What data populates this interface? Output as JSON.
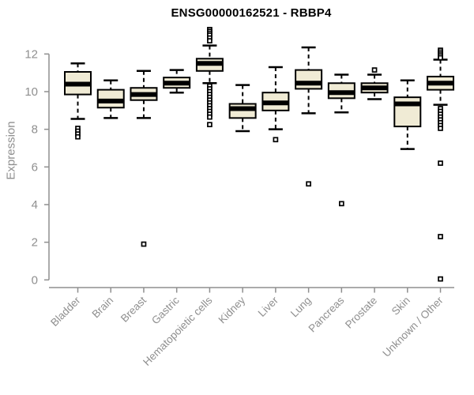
{
  "chart_data": {
    "type": "boxplot",
    "title": "ENSG00000162521 - RBBP4",
    "ylabel": "Expression",
    "xlabel": "",
    "ylim": [
      0,
      12
    ],
    "yticks": [
      0,
      2,
      4,
      6,
      8,
      10,
      12
    ],
    "grid": false,
    "legend": "none",
    "categories": [
      "Bladder",
      "Brain",
      "Breast",
      "Gastric",
      "Hematopoietic cells",
      "Kidney",
      "Liver",
      "Lung",
      "Pancreas",
      "Prostate",
      "Skin",
      "Unknown / Other"
    ],
    "series": [
      {
        "category": "Bladder",
        "whisker_low": 8.55,
        "q1": 9.85,
        "median": 10.4,
        "q3": 11.05,
        "whisker_high": 11.5,
        "outliers": [
          8.05,
          7.9,
          7.75,
          7.6
        ]
      },
      {
        "category": "Brain",
        "whisker_low": 8.6,
        "q1": 9.15,
        "median": 9.5,
        "q3": 10.1,
        "whisker_high": 10.6,
        "outliers": []
      },
      {
        "category": "Breast",
        "whisker_low": 8.6,
        "q1": 9.55,
        "median": 9.85,
        "q3": 10.2,
        "whisker_high": 11.1,
        "outliers": [
          1.9
        ]
      },
      {
        "category": "Gastric",
        "whisker_low": 9.95,
        "q1": 10.2,
        "median": 10.45,
        "q3": 10.75,
        "whisker_high": 11.15,
        "outliers": []
      },
      {
        "category": "Hematopoietic cells",
        "whisker_low": 10.45,
        "q1": 11.1,
        "median": 11.5,
        "q3": 11.75,
        "whisker_high": 12.45,
        "outliers": [
          13.3,
          13.2,
          13.1,
          13.0,
          12.85,
          12.7,
          10.3,
          10.15,
          10.0,
          9.85,
          9.7,
          9.55,
          9.4,
          9.25,
          9.1,
          8.95,
          8.8,
          8.65,
          8.25
        ]
      },
      {
        "category": "Kidney",
        "whisker_low": 7.9,
        "q1": 8.6,
        "median": 9.1,
        "q3": 9.35,
        "whisker_high": 10.35,
        "outliers": []
      },
      {
        "category": "Liver",
        "whisker_low": 8.0,
        "q1": 9.0,
        "median": 9.4,
        "q3": 9.95,
        "whisker_high": 11.3,
        "outliers": [
          7.45
        ]
      },
      {
        "category": "Lung",
        "whisker_low": 8.85,
        "q1": 10.15,
        "median": 10.45,
        "q3": 11.15,
        "whisker_high": 12.35,
        "outliers": [
          5.1
        ]
      },
      {
        "category": "Pancreas",
        "whisker_low": 8.9,
        "q1": 9.65,
        "median": 9.95,
        "q3": 10.45,
        "whisker_high": 10.9,
        "outliers": [
          4.05
        ]
      },
      {
        "category": "Prostate",
        "whisker_low": 9.6,
        "q1": 9.95,
        "median": 10.2,
        "q3": 10.45,
        "whisker_high": 10.9,
        "outliers": [
          11.15
        ]
      },
      {
        "category": "Skin",
        "whisker_low": 6.95,
        "q1": 8.15,
        "median": 9.35,
        "q3": 9.7,
        "whisker_high": 10.6,
        "outliers": []
      },
      {
        "category": "Unknown / Other",
        "whisker_low": 9.3,
        "q1": 10.1,
        "median": 10.45,
        "q3": 10.8,
        "whisker_high": 11.7,
        "outliers": [
          12.2,
          12.1,
          12.0,
          11.9,
          11.8,
          9.1,
          8.95,
          8.8,
          8.65,
          8.5,
          8.35,
          8.2,
          8.05,
          6.2,
          2.3,
          0.05
        ]
      }
    ],
    "colors": {
      "box_fill": "#F0EBD5",
      "box_stroke": "#000000",
      "median": "#000000",
      "whisker": "#000000",
      "outlier_stroke": "#000000",
      "axis": "#8F8F8F",
      "tick_label": "#8F8F8F",
      "title": "#000000",
      "background": "#FFFFFF"
    }
  }
}
